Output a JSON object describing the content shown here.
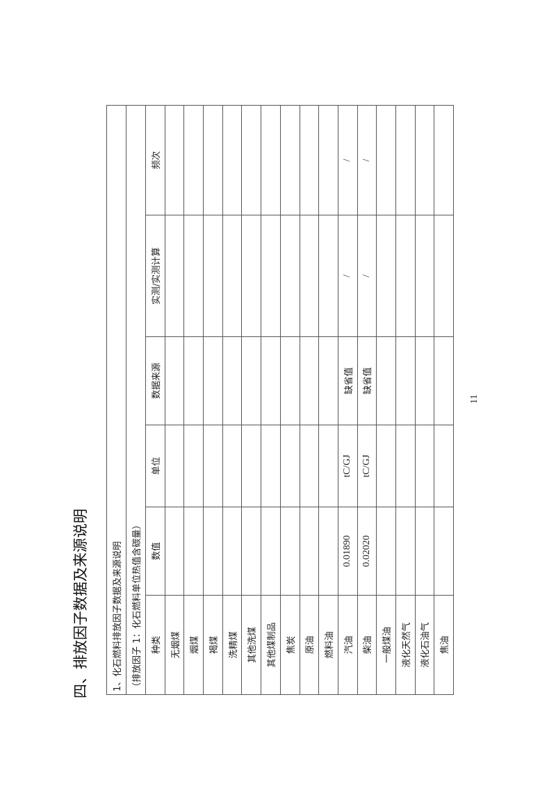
{
  "title": "四、排放因子数据及来源说明",
  "page_number": "11",
  "section": "1、化石燃料排放因子数据及来源说明",
  "subsection": "（排放因子 1：化石燃料单位热值含碳量）",
  "columns": [
    "种类",
    "数值",
    "单位",
    "数据来源",
    "实测/实测计算",
    "频次"
  ],
  "rows": [
    {
      "type": "无烟煤",
      "value": "",
      "unit": "",
      "source": "",
      "measured": "",
      "frequency": ""
    },
    {
      "type": "烟煤",
      "value": "",
      "unit": "",
      "source": "",
      "measured": "",
      "frequency": ""
    },
    {
      "type": "褐煤",
      "value": "",
      "unit": "",
      "source": "",
      "measured": "",
      "frequency": ""
    },
    {
      "type": "洗精煤",
      "value": "",
      "unit": "",
      "source": "",
      "measured": "",
      "frequency": ""
    },
    {
      "type": "其他洗煤",
      "value": "",
      "unit": "",
      "source": "",
      "measured": "",
      "frequency": ""
    },
    {
      "type": "其他煤制品",
      "value": "",
      "unit": "",
      "source": "",
      "measured": "",
      "frequency": ""
    },
    {
      "type": "焦炭",
      "value": "",
      "unit": "",
      "source": "",
      "measured": "",
      "frequency": ""
    },
    {
      "type": "原油",
      "value": "",
      "unit": "",
      "source": "",
      "measured": "",
      "frequency": ""
    },
    {
      "type": "燃料油",
      "value": "",
      "unit": "",
      "source": "",
      "measured": "",
      "frequency": ""
    },
    {
      "type": "汽油",
      "value": "0.01890",
      "unit": "tC/GJ",
      "source": "缺省值",
      "measured": "/",
      "frequency": "/"
    },
    {
      "type": "柴油",
      "value": "0.02020",
      "unit": "tC/GJ",
      "source": "缺省值",
      "measured": "/",
      "frequency": "/"
    },
    {
      "type": "一般煤油",
      "value": "",
      "unit": "",
      "source": "",
      "measured": "",
      "frequency": ""
    },
    {
      "type": "液化天然气",
      "value": "",
      "unit": "",
      "source": "",
      "measured": "",
      "frequency": ""
    },
    {
      "type": "液化石油气",
      "value": "",
      "unit": "",
      "source": "",
      "measured": "",
      "frequency": ""
    },
    {
      "type": "焦油",
      "value": "",
      "unit": "",
      "source": "",
      "measured": "",
      "frequency": ""
    }
  ]
}
